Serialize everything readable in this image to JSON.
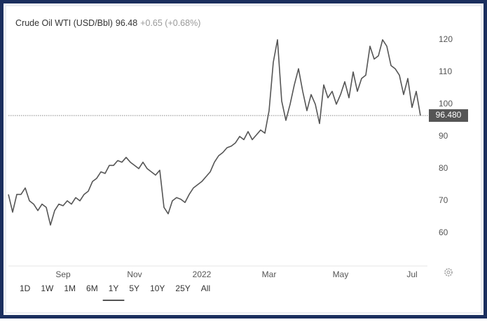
{
  "chart_data": {
    "type": "line",
    "title": "Crude Oil WTI (USD/Bbl)",
    "price": 96.48,
    "change": "+0.65 (+0.68%)",
    "price_line": {
      "value": 96.48,
      "label": "96.480"
    },
    "categories": [
      null,
      null,
      null,
      null,
      null,
      null,
      null,
      null,
      null,
      null,
      null,
      null,
      null,
      "Sep",
      null,
      null,
      null,
      null,
      null,
      null,
      null,
      null,
      null,
      null,
      null,
      null,
      null,
      null,
      null,
      null,
      "Nov",
      null,
      null,
      null,
      null,
      null,
      null,
      null,
      null,
      null,
      null,
      null,
      null,
      null,
      null,
      null,
      "2022",
      null,
      null,
      null,
      null,
      null,
      null,
      null,
      null,
      null,
      null,
      null,
      null,
      null,
      null,
      null,
      "Mar",
      null,
      null,
      null,
      null,
      null,
      null,
      null,
      null,
      null,
      null,
      null,
      null,
      null,
      null,
      null,
      null,
      "May",
      null,
      null,
      null,
      null,
      null,
      null,
      null,
      null,
      null,
      null,
      null,
      null,
      null,
      null,
      null,
      null,
      "Jul",
      null,
      null
    ],
    "series": [
      {
        "name": "Crude Oil WTI",
        "color": "#555555",
        "values": [
          72,
          66.5,
          72,
          72,
          74,
          70,
          69,
          67,
          69,
          68,
          62.5,
          67,
          69,
          68.5,
          70,
          69,
          71,
          70,
          72,
          73,
          76,
          77,
          79,
          78.5,
          81,
          81,
          82.5,
          82,
          83.5,
          82,
          81,
          80,
          82,
          80,
          79,
          78,
          79.5,
          68,
          66,
          70,
          71,
          70.5,
          69.5,
          72,
          74,
          75,
          76,
          77.5,
          79,
          82,
          84,
          85,
          86.5,
          87,
          88,
          90,
          89,
          91.5,
          89,
          90.5,
          92,
          91,
          98,
          113,
          120,
          101,
          95,
          100,
          106,
          111,
          104,
          98,
          103,
          100,
          94,
          106,
          102,
          104,
          100,
          103,
          107,
          102,
          110,
          104,
          108,
          109,
          118,
          114,
          115,
          120,
          118,
          112,
          111,
          109,
          103,
          108,
          99,
          104,
          96.48
        ]
      }
    ],
    "ylim": [
      50,
      128
    ],
    "yticks": [
      60,
      70,
      80,
      90,
      100,
      110,
      120
    ],
    "grid": false
  },
  "toolbar": {
    "ranges": [
      "1D",
      "1W",
      "1M",
      "6M",
      "1Y",
      "5Y",
      "10Y",
      "25Y",
      "All"
    ],
    "selected": "1Y"
  }
}
